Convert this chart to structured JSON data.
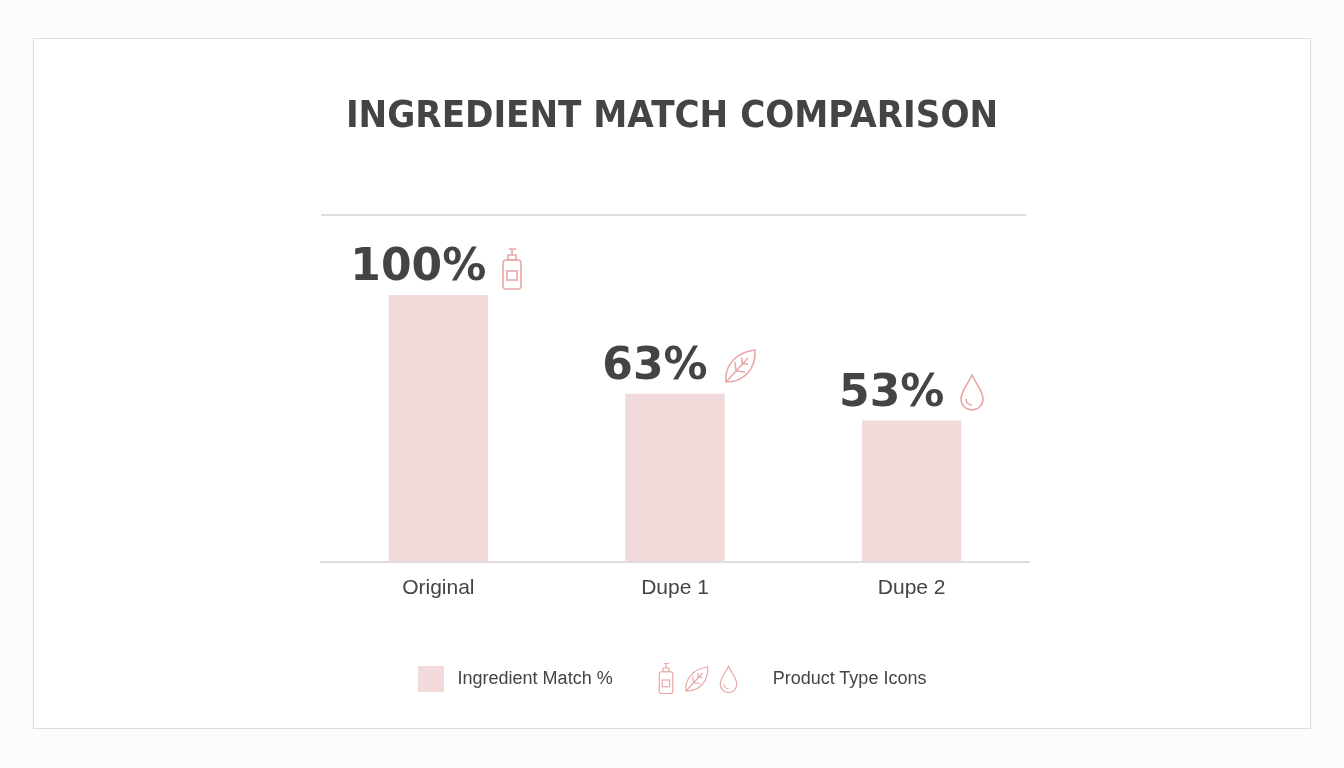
{
  "chart_data": {
    "type": "bar",
    "title": "INGREDIENT MATCH COMPARISON",
    "categories": [
      "Original",
      "Dupe 1",
      "Dupe 2"
    ],
    "series": [
      {
        "name": "Ingredient Match %",
        "color": "#f3dada",
        "values": [
          100,
          63,
          53
        ],
        "value_labels": [
          "100%",
          "63%",
          "53%"
        ]
      }
    ],
    "grid": false,
    "legend": "bottom",
    "annotations": [
      "Product Type Icons"
    ]
  }
}
